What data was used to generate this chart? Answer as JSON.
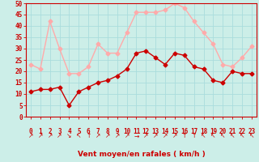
{
  "xlabel": "Vent moyen/en rafales ( km/h )",
  "x": [
    0,
    1,
    2,
    3,
    4,
    5,
    6,
    7,
    8,
    9,
    10,
    11,
    12,
    13,
    14,
    15,
    16,
    17,
    18,
    19,
    20,
    21,
    22,
    23
  ],
  "mean_wind": [
    11,
    12,
    12,
    13,
    5,
    11,
    13,
    15,
    16,
    18,
    21,
    28,
    29,
    26,
    23,
    28,
    27,
    22,
    21,
    16,
    15,
    20,
    19,
    19
  ],
  "gust_wind": [
    23,
    21,
    42,
    30,
    19,
    19,
    22,
    32,
    28,
    28,
    37,
    46,
    46,
    46,
    47,
    50,
    48,
    42,
    37,
    32,
    23,
    22,
    26,
    31
  ],
  "mean_color": "#cc0000",
  "gust_color": "#ffaaaa",
  "bg_color": "#cceee8",
  "grid_color": "#aadddd",
  "ylim": [
    0,
    50
  ],
  "yticks": [
    0,
    5,
    10,
    15,
    20,
    25,
    30,
    35,
    40,
    45,
    50
  ],
  "axis_color": "#cc0000",
  "label_fontsize": 6.5,
  "tick_fontsize": 5.5,
  "marker_size": 2.5,
  "line_width": 1.0,
  "arrows": [
    "↗",
    "↗",
    "↗",
    "↗",
    "↘",
    "↖",
    "↑",
    "↗",
    "↗",
    "↗",
    "↗",
    "→",
    "↗",
    "↗",
    "↗",
    "↗",
    "↑",
    "↑",
    "↖",
    "↖",
    "↖",
    "↖",
    "↖",
    "↖"
  ]
}
